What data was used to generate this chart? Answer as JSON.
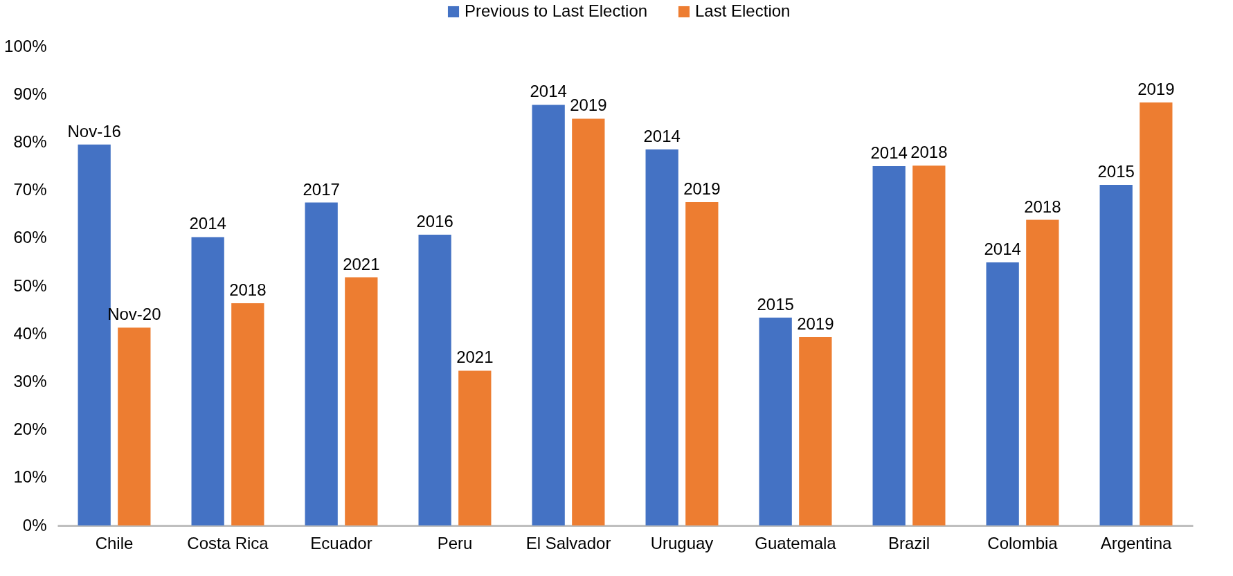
{
  "chart_data": {
    "type": "bar",
    "categories": [
      "Chile",
      "Costa Rica",
      "Ecuador",
      "Peru",
      "El Salvador",
      "Uruguay",
      "Guatemala",
      "Brazil",
      "Colombia",
      "Argentina"
    ],
    "series": [
      {
        "name": "Previous to Last Election",
        "color": "#4472c4",
        "values": [
          79.5,
          60.2,
          67.4,
          60.7,
          87.8,
          78.5,
          43.4,
          75.0,
          54.9,
          71.1
        ]
      },
      {
        "name": "Last Election",
        "color": "#ed7d31",
        "values": [
          41.3,
          46.4,
          51.8,
          32.3,
          84.9,
          67.5,
          39.3,
          75.1,
          63.8,
          88.3
        ]
      }
    ],
    "annotations": [
      "Nov-16",
      "Nov-20",
      "2014",
      "2018",
      "2017",
      "2021",
      "2016",
      "2021",
      "2014",
      "2019",
      "2014",
      "2019",
      "2015",
      "2019",
      "2014",
      "2018",
      "2014",
      "2018",
      "2015",
      "2019"
    ],
    "ylim": [
      0,
      100
    ],
    "yticks": [
      {
        "value": 0,
        "label": "0%"
      },
      {
        "value": 10,
        "label": "10%"
      },
      {
        "value": 20,
        "label": "20%"
      },
      {
        "value": 30,
        "label": "30%"
      },
      {
        "value": 40,
        "label": "40%"
      },
      {
        "value": 50,
        "label": "50%"
      },
      {
        "value": 60,
        "label": "60%"
      },
      {
        "value": 70,
        "label": "70%"
      },
      {
        "value": 80,
        "label": "80%"
      },
      {
        "value": 90,
        "label": "90%"
      },
      {
        "value": 100,
        "label": "100%"
      }
    ],
    "grid": false,
    "legend": "top"
  }
}
